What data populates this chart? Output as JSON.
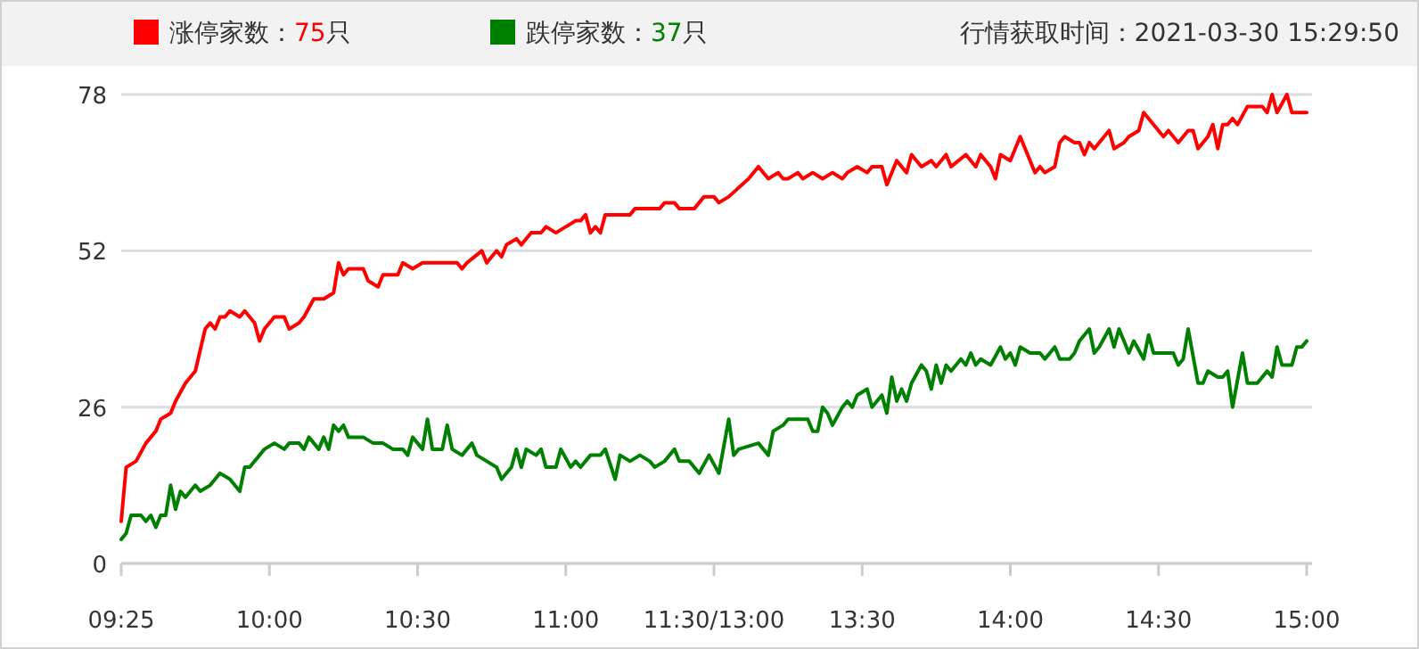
{
  "chart_data": {
    "type": "line",
    "annotations": [
      "行情获取时间：2021-03-30 15:29:50"
    ],
    "categories": [
      "09:25",
      null,
      null,
      null,
      null,
      null,
      null,
      null,
      null,
      null,
      null,
      null,
      null,
      null,
      null,
      null,
      null,
      null,
      null,
      null,
      null,
      null,
      null,
      null,
      null,
      null,
      null,
      null,
      null,
      null,
      "10:00",
      null,
      null,
      null,
      null,
      null,
      null,
      null,
      null,
      null,
      null,
      null,
      null,
      null,
      null,
      null,
      null,
      null,
      null,
      null,
      null,
      null,
      null,
      null,
      null,
      null,
      null,
      null,
      null,
      null,
      "10:30",
      null,
      null,
      null,
      null,
      null,
      null,
      null,
      null,
      null,
      null,
      null,
      null,
      null,
      null,
      null,
      null,
      null,
      null,
      null,
      null,
      null,
      null,
      null,
      null,
      null,
      null,
      null,
      null,
      null,
      "11:00",
      null,
      null,
      null,
      null,
      null,
      null,
      null,
      null,
      null,
      null,
      null,
      null,
      null,
      null,
      null,
      null,
      null,
      null,
      null,
      null,
      null,
      null,
      null,
      null,
      null,
      null,
      null,
      null,
      null,
      "11:30/13:00",
      null,
      null,
      null,
      null,
      null,
      null,
      null,
      null,
      null,
      null,
      null,
      null,
      null,
      null,
      null,
      null,
      null,
      null,
      null,
      null,
      null,
      null,
      null,
      null,
      null,
      null,
      null,
      null,
      null,
      "13:30",
      null,
      null,
      null,
      null,
      null,
      null,
      null,
      null,
      null,
      null,
      null,
      null,
      null,
      null,
      null,
      null,
      null,
      null,
      null,
      null,
      null,
      null,
      null,
      null,
      null,
      null,
      null,
      null,
      null,
      "14:00",
      null,
      null,
      null,
      null,
      null,
      null,
      null,
      null,
      null,
      null,
      null,
      null,
      null,
      null,
      null,
      null,
      null,
      null,
      null,
      null,
      null,
      null,
      null,
      null,
      null,
      null,
      null,
      null,
      null,
      "14:30",
      null,
      null,
      null,
      null,
      null,
      null,
      null,
      null,
      null,
      null,
      null,
      null,
      null,
      null,
      null,
      null,
      null,
      null,
      null,
      null,
      null,
      null,
      null,
      null,
      null,
      null,
      null,
      null,
      null,
      "15:00"
    ],
    "ylim": [
      0,
      78
    ],
    "yticks": [
      0,
      26,
      52,
      78
    ],
    "grid": "y",
    "legend": "top",
    "marker": "none",
    "line_style": "solid",
    "series": [
      {
        "name": "涨停家数：75只",
        "color": "#ff0000",
        "values": [
          7,
          16,
          null,
          17,
          null,
          20,
          null,
          22,
          24,
          null,
          25,
          27,
          null,
          30,
          null,
          32,
          null,
          39,
          40,
          39,
          41,
          41,
          42,
          null,
          41,
          42,
          41,
          40,
          37,
          39,
          null,
          41,
          null,
          41,
          39,
          null,
          40,
          41,
          null,
          44,
          44,
          44,
          null,
          45,
          50,
          48,
          49,
          null,
          null,
          49,
          47,
          null,
          46,
          48,
          null,
          null,
          48,
          50,
          null,
          49,
          null,
          50,
          50,
          null,
          50,
          50,
          50,
          null,
          50,
          49,
          50,
          null,
          null,
          52,
          50,
          null,
          52,
          51,
          53,
          null,
          54,
          53,
          null,
          55,
          null,
          55,
          56,
          null,
          55,
          null,
          56,
          null,
          57,
          57,
          58,
          55,
          56,
          55,
          58,
          null,
          null,
          null,
          null,
          58,
          59,
          null,
          null,
          null,
          null,
          59,
          60,
          null,
          60,
          59,
          null,
          null,
          59,
          null,
          61,
          null,
          61,
          60,
          null,
          61,
          null,
          null,
          null,
          64,
          65,
          66,
          null,
          64,
          null,
          65,
          64,
          64,
          null,
          65,
          64,
          null,
          65,
          null,
          64,
          null,
          65,
          null,
          64,
          65,
          null,
          66,
          null,
          65,
          66,
          null,
          66,
          63,
          null,
          67,
          null,
          65,
          68,
          null,
          66,
          null,
          67,
          66,
          null,
          68,
          66,
          null,
          null,
          68,
          null,
          66,
          68,
          null,
          66,
          64,
          68,
          null,
          67,
          69,
          71,
          null,
          67,
          65,
          66,
          65,
          null,
          66,
          70,
          71,
          null,
          70,
          70,
          68,
          70,
          69,
          null,
          null,
          72,
          69,
          null,
          70,
          71,
          null,
          72,
          75,
          null,
          73,
          null,
          71,
          72,
          null,
          70,
          null,
          72,
          72,
          69,
          null,
          71,
          73,
          69,
          73,
          73,
          74,
          73,
          null,
          76,
          null,
          null,
          76,
          75,
          78,
          75,
          null,
          78,
          75,
          null,
          null,
          75
        ]
      },
      {
        "name": "跌停家数：37只",
        "color": "#008000",
        "values": [
          4,
          5,
          8,
          null,
          8,
          7,
          8,
          6,
          8,
          8,
          13,
          9,
          12,
          11,
          null,
          13,
          12,
          null,
          13,
          null,
          15,
          null,
          14,
          13,
          12,
          16,
          16,
          null,
          18,
          19,
          null,
          20,
          null,
          19,
          20,
          null,
          20,
          19,
          21,
          null,
          19,
          21,
          19,
          23,
          22,
          23,
          21,
          null,
          null,
          21,
          null,
          20,
          null,
          20,
          null,
          19,
          null,
          19,
          18,
          21,
          null,
          19,
          24,
          19,
          null,
          19,
          23,
          19,
          null,
          18,
          null,
          20,
          18,
          null,
          17,
          null,
          16,
          14,
          null,
          16,
          19,
          16,
          19,
          null,
          18,
          19,
          16,
          null,
          16,
          19,
          null,
          16,
          17,
          16,
          null,
          18,
          null,
          18,
          19,
          null,
          14,
          18,
          null,
          17,
          null,
          18,
          null,
          17,
          16,
          null,
          17,
          null,
          19,
          17,
          null,
          17,
          null,
          15,
          null,
          18,
          null,
          15,
          null,
          24,
          18,
          19,
          null,
          null,
          null,
          20,
          null,
          18,
          22,
          null,
          23,
          24,
          null,
          null,
          null,
          24,
          22,
          22,
          26,
          25,
          23,
          null,
          26,
          27,
          26,
          28,
          null,
          29,
          26,
          null,
          28,
          25,
          31,
          27,
          29,
          27,
          30,
          null,
          33,
          32,
          29,
          33,
          30,
          33,
          32,
          null,
          34,
          33,
          35,
          33,
          34,
          null,
          33,
          null,
          36,
          34,
          35,
          33,
          36,
          null,
          35,
          null,
          35,
          34,
          null,
          36,
          34,
          34,
          34,
          35,
          37,
          null,
          39,
          35,
          36,
          null,
          39,
          36,
          39,
          null,
          35,
          37,
          null,
          34,
          38,
          35,
          null,
          null,
          null,
          35,
          33,
          34,
          39,
          null,
          30,
          30,
          32,
          null,
          31,
          31,
          32,
          26,
          null,
          35,
          30,
          null,
          30,
          null,
          32,
          31,
          36,
          33,
          null,
          33,
          36,
          36,
          37
        ]
      }
    ]
  }
}
